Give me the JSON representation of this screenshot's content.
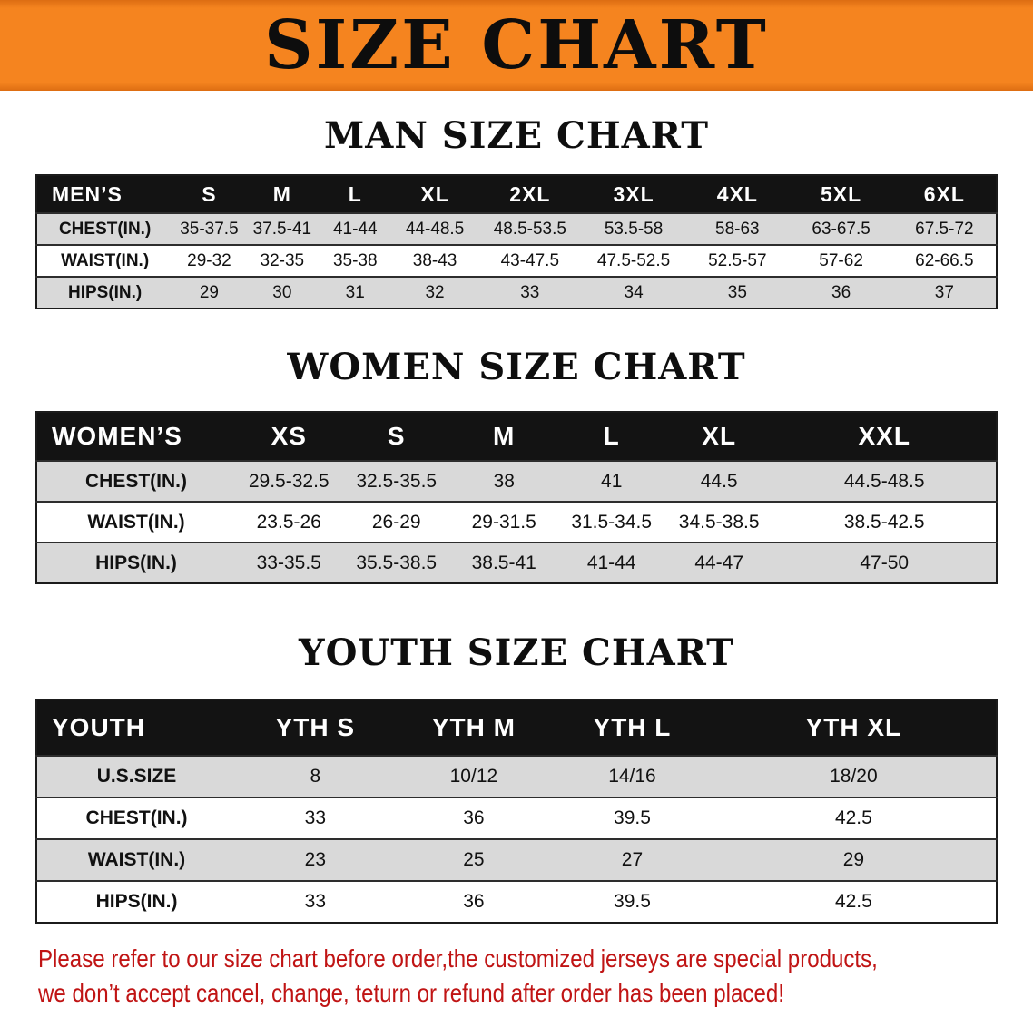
{
  "banner": {
    "title": "SIZE CHART"
  },
  "sections": [
    {
      "heading": "MAN SIZE CHART",
      "table": {
        "name": "mens",
        "header": [
          "MEN’S",
          "S",
          "M",
          "L",
          "XL",
          "2XL",
          "3XL",
          "4XL",
          "5XL",
          "6XL"
        ],
        "rows": [
          [
            "CHEST(IN.)",
            "35-37.5",
            "37.5-41",
            "41-44",
            "44-48.5",
            "48.5-53.5",
            "53.5-58",
            "58-63",
            "63-67.5",
            "67.5-72"
          ],
          [
            "WAIST(IN.)",
            "29-32",
            "32-35",
            "35-38",
            "38-43",
            "43-47.5",
            "47.5-52.5",
            "52.5-57",
            "57-62",
            "62-66.5"
          ],
          [
            "HIPS(IN.)",
            "29",
            "30",
            "31",
            "32",
            "33",
            "34",
            "35",
            "36",
            "37"
          ]
        ]
      }
    },
    {
      "heading": "WOMEN SIZE CHART",
      "table": {
        "name": "womens",
        "header": [
          "WOMEN’S",
          "XS",
          "S",
          "M",
          "L",
          "XL",
          "XXL"
        ],
        "rows": [
          [
            "CHEST(IN.)",
            "29.5-32.5",
            "32.5-35.5",
            "38",
            "41",
            "44.5",
            "44.5-48.5"
          ],
          [
            "WAIST(IN.)",
            "23.5-26",
            "26-29",
            "29-31.5",
            "31.5-34.5",
            "34.5-38.5",
            "38.5-42.5"
          ],
          [
            "HIPS(IN.)",
            "33-35.5",
            "35.5-38.5",
            "38.5-41",
            "41-44",
            "44-47",
            "47-50"
          ]
        ]
      }
    },
    {
      "heading": "YOUTH SIZE CHART",
      "table": {
        "name": "youth",
        "header": [
          "YOUTH",
          "YTH S",
          "YTH M",
          "YTH L",
          "YTH XL"
        ],
        "rows": [
          [
            "U.S.SIZE",
            "8",
            "10/12",
            "14/16",
            "18/20"
          ],
          [
            "CHEST(IN.)",
            "33",
            "36",
            "39.5",
            "42.5"
          ],
          [
            "WAIST(IN.)",
            "23",
            "25",
            "27",
            "29"
          ],
          [
            "HIPS(IN.)",
            "33",
            "36",
            "39.5",
            "42.5"
          ]
        ]
      }
    }
  ],
  "footer": {
    "line1": "Please refer to our size chart before order,the customized jerseys are special products,",
    "line2": "we don’t accept cancel, change, teturn or refund after order has been placed!"
  },
  "colors": {
    "banner_bg": "#f5841f",
    "table_header_bg": "#131313",
    "row_stripe": "#d9d9d9",
    "footer_text": "#c01414"
  }
}
